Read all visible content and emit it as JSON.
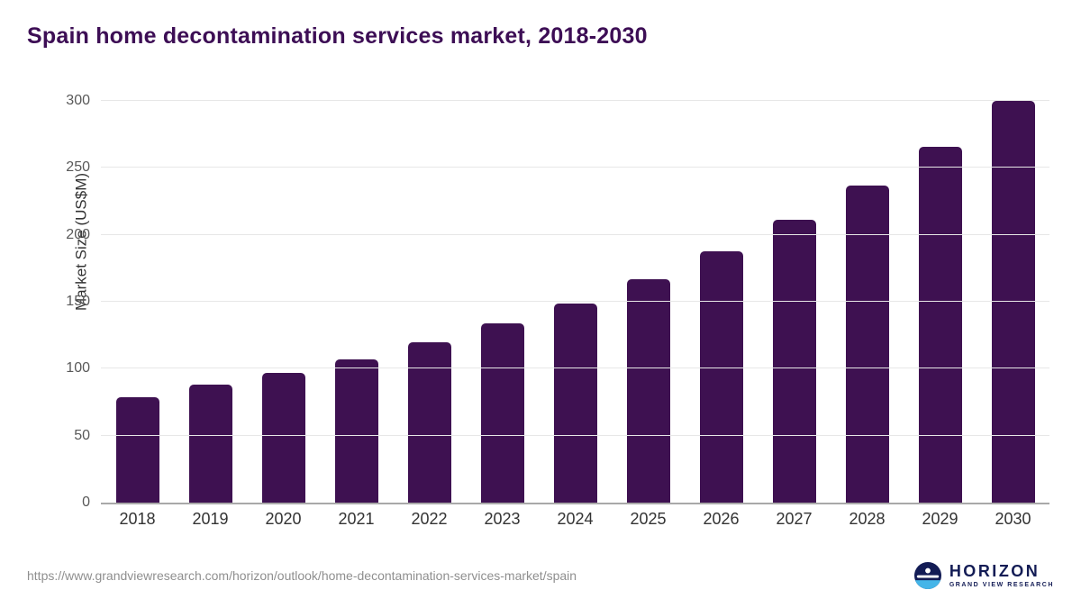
{
  "header": {
    "title": "Spain home decontamination services market, 2018-2030"
  },
  "chart_data": {
    "type": "bar",
    "title": "Spain home decontamination services market, 2018-2030",
    "categories": [
      "2018",
      "2019",
      "2020",
      "2021",
      "2022",
      "2023",
      "2024",
      "2025",
      "2026",
      "2027",
      "2028",
      "2029",
      "2030"
    ],
    "values": [
      79,
      88,
      97,
      107,
      120,
      134,
      149,
      167,
      188,
      211,
      237,
      266,
      300
    ],
    "xlabel": "",
    "ylabel": "Market Size (US$M)",
    "ylim": [
      0,
      300
    ],
    "yticks": [
      0,
      50,
      100,
      150,
      200,
      250,
      300
    ],
    "bar_color": "#3e1151",
    "grid": true,
    "legend": false
  },
  "footer": {
    "source_url": "https://www.grandviewresearch.com/horizon/outlook/home-decontamination-services-market/spain",
    "logo_title": "HORIZON",
    "logo_subtitle": "GRAND VIEW RESEARCH"
  },
  "colors": {
    "title": "#3d0e55",
    "bar": "#3e1151",
    "gridline": "#e7e7e7",
    "axis_line": "#a9a9a9",
    "tick_text": "#595959",
    "logo_navy": "#131c55",
    "logo_blue": "#45b5e8"
  }
}
